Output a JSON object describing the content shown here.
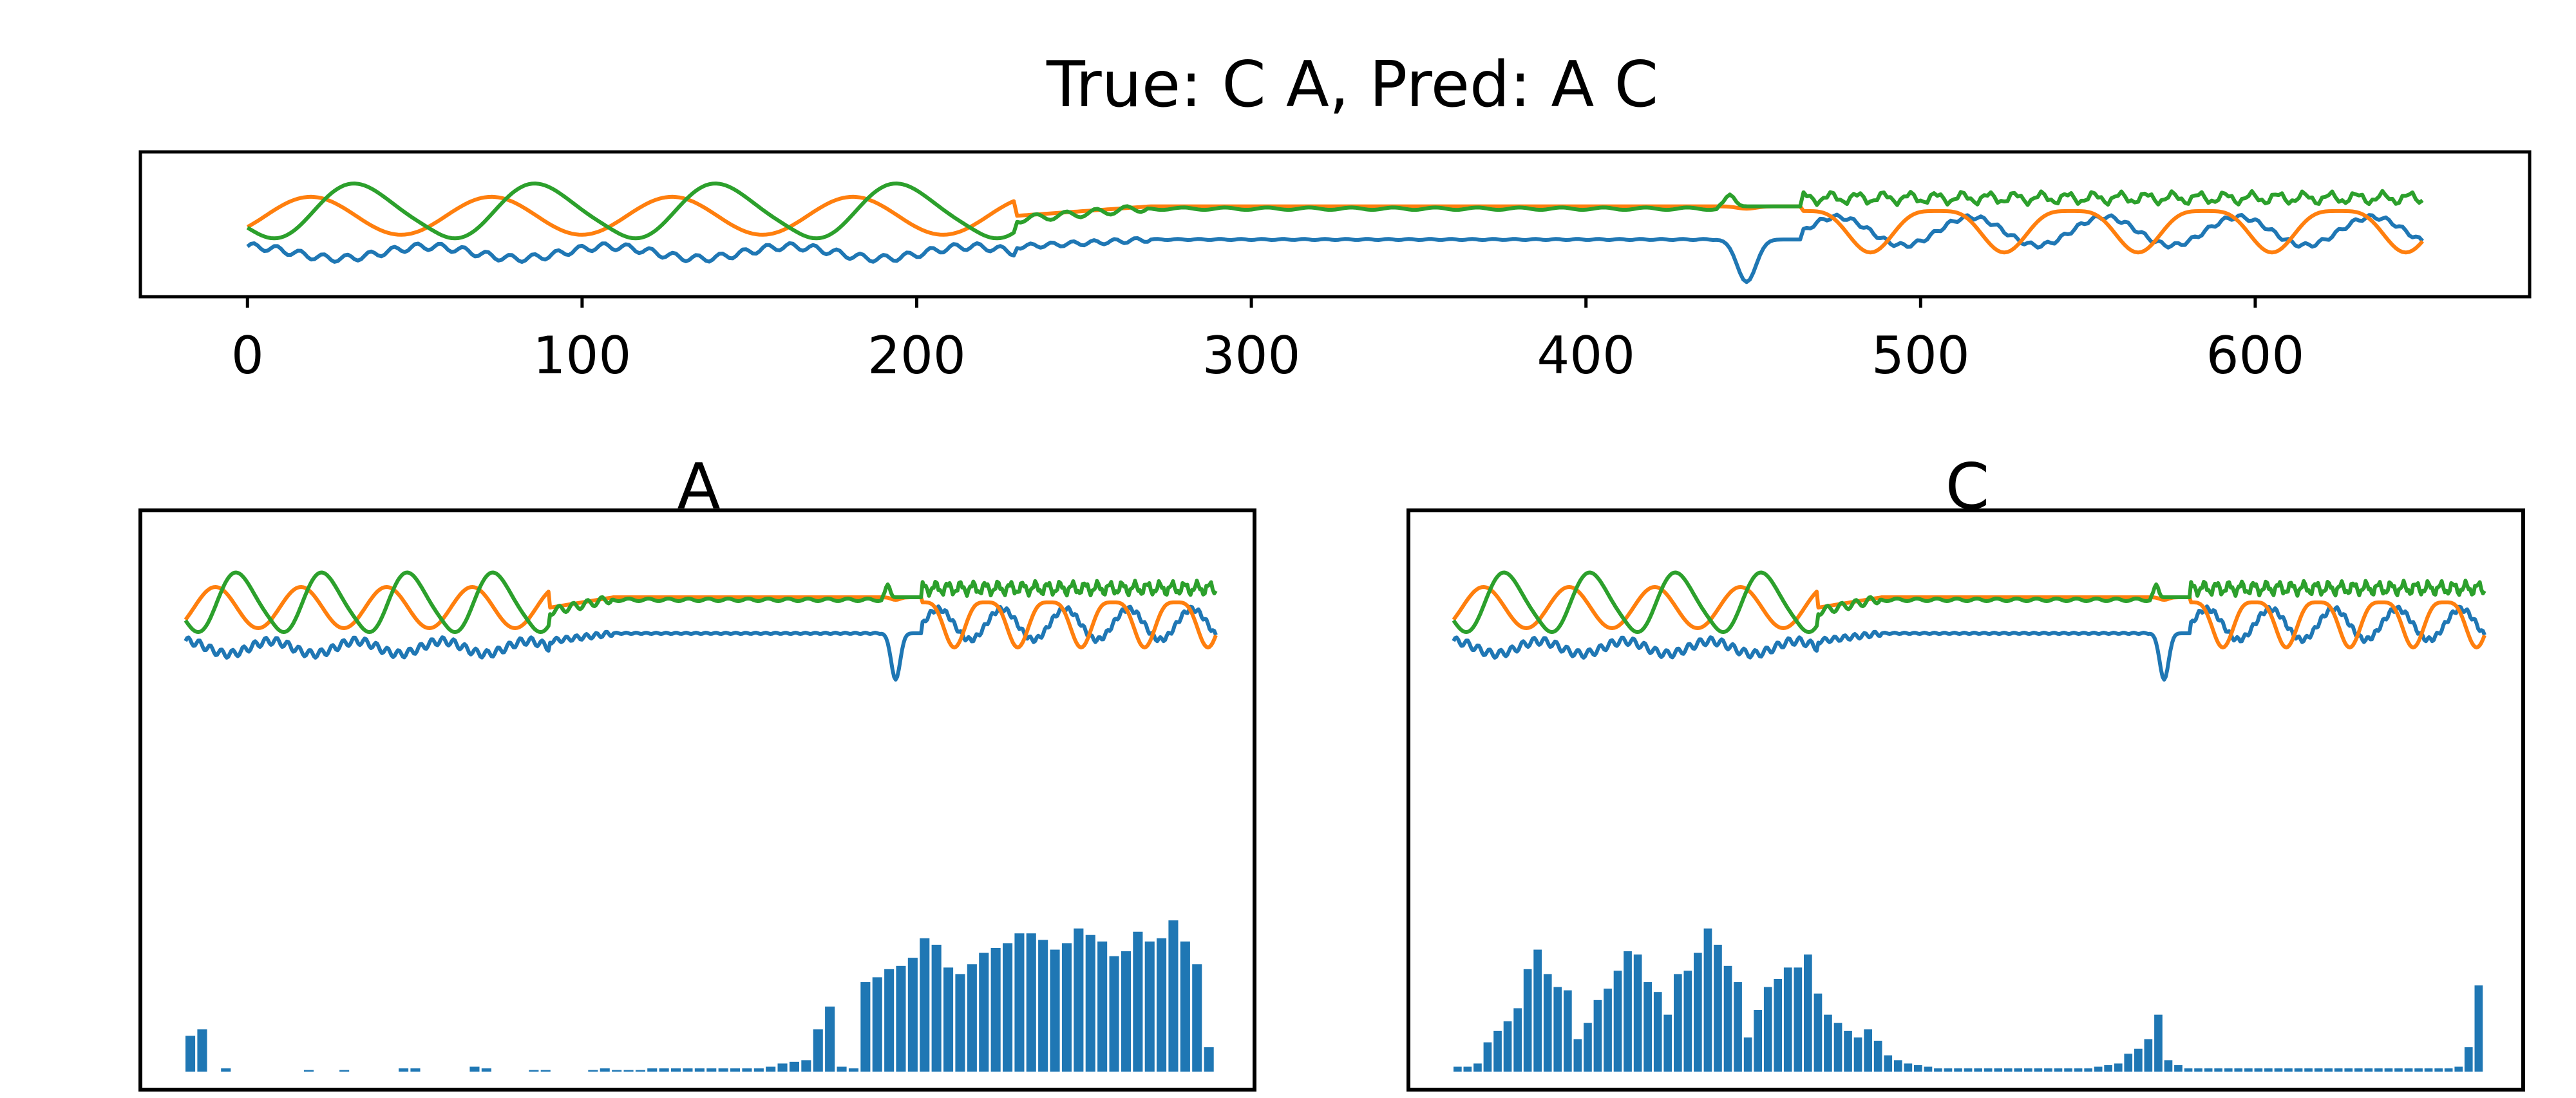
{
  "chart_data": [
    {
      "type": "line",
      "title": "True: C A, Pred: A C",
      "xlim": [
        -32,
        682
      ],
      "x_ticks": [
        "0",
        "100",
        "200",
        "300",
        "400",
        "500",
        "600"
      ],
      "x_range": [
        0,
        650
      ],
      "series": [
        {
          "name": "series-1",
          "color": "#1f77b4"
        },
        {
          "name": "series-2",
          "color": "#ff7f0e"
        },
        {
          "name": "series-3",
          "color": "#2ca02c"
        }
      ]
    },
    {
      "type": "line+bar",
      "title": "A",
      "x_range": [
        0,
        650
      ],
      "attention": [
        0.22,
        0.26,
        0,
        0.02,
        0,
        0,
        0,
        0,
        0,
        0,
        0.01,
        0,
        0,
        0.01,
        0,
        0,
        0,
        0,
        0.02,
        0.02,
        0,
        0,
        0,
        0,
        0.03,
        0.02,
        0,
        0,
        0,
        0.01,
        0.01,
        0,
        0,
        0,
        0.01,
        0.02,
        0.01,
        0.01,
        0.01,
        0.02,
        0.02,
        0.02,
        0.02,
        0.02,
        0.02,
        0.02,
        0.02,
        0.02,
        0.02,
        0.03,
        0.05,
        0.06,
        0.07,
        0.26,
        0.4,
        0.03,
        0.02,
        0.55,
        0.58,
        0.63,
        0.65,
        0.7,
        0.82,
        0.78,
        0.64,
        0.6,
        0.66,
        0.73,
        0.76,
        0.79,
        0.85,
        0.85,
        0.81,
        0.75,
        0.79,
        0.88,
        0.84,
        0.8,
        0.71,
        0.74,
        0.86,
        0.8,
        0.82,
        0.93,
        0.8,
        0.66,
        0.15
      ]
    },
    {
      "type": "line+bar",
      "title": "C",
      "x_range": [
        0,
        650
      ],
      "attention": [
        0.03,
        0.03,
        0.05,
        0.18,
        0.25,
        0.31,
        0.39,
        0.63,
        0.75,
        0.6,
        0.52,
        0.5,
        0.2,
        0.3,
        0.44,
        0.51,
        0.62,
        0.74,
        0.72,
        0.55,
        0.49,
        0.35,
        0.6,
        0.62,
        0.73,
        0.88,
        0.78,
        0.65,
        0.55,
        0.21,
        0.38,
        0.52,
        0.57,
        0.64,
        0.64,
        0.72,
        0.48,
        0.35,
        0.3,
        0.25,
        0.21,
        0.26,
        0.19,
        0.1,
        0.07,
        0.05,
        0.04,
        0.03,
        0.02,
        0.02,
        0.02,
        0.02,
        0.02,
        0.02,
        0.02,
        0.02,
        0.02,
        0.02,
        0.02,
        0.02,
        0.02,
        0.02,
        0.02,
        0.02,
        0.03,
        0.04,
        0.05,
        0.11,
        0.14,
        0.2,
        0.35,
        0.07,
        0.04,
        0.02,
        0.02,
        0.02,
        0.02,
        0.02,
        0.02,
        0.02,
        0.02,
        0.02,
        0.02,
        0.02,
        0.02,
        0.02,
        0.02,
        0.02,
        0.02,
        0.02,
        0.02,
        0.02,
        0.02,
        0.02,
        0.02,
        0.02,
        0.02,
        0.02,
        0.02,
        0.02,
        0.03,
        0.15,
        0.53
      ]
    }
  ]
}
